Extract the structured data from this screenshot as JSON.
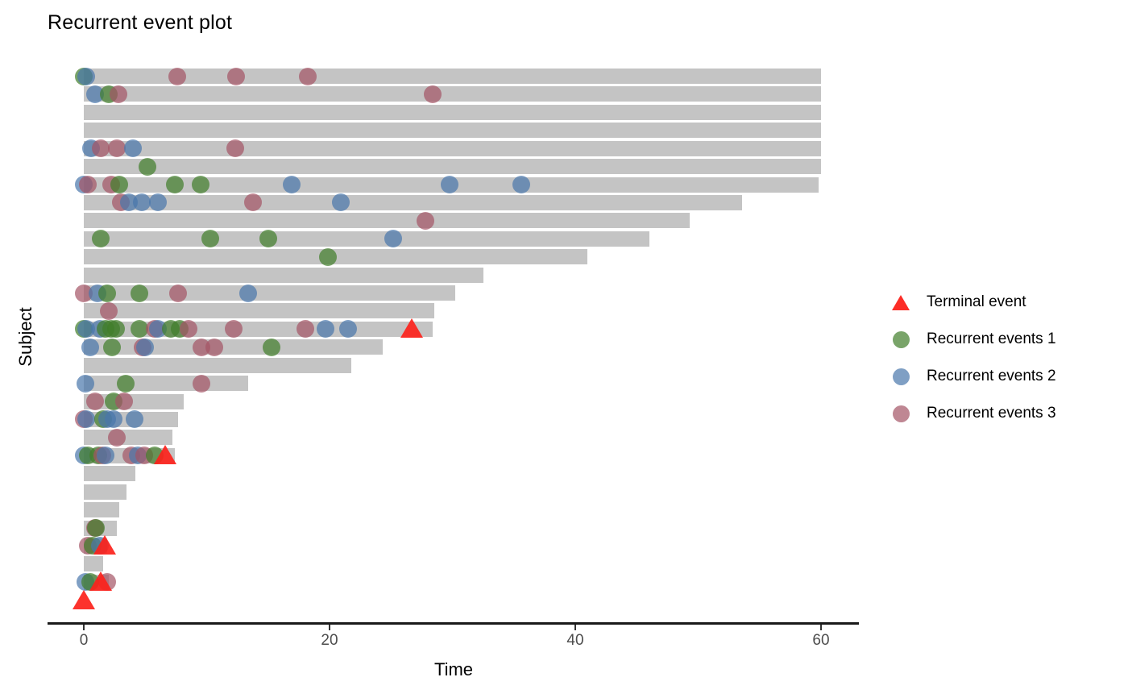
{
  "title": "Recurrent event plot",
  "axes": {
    "x": {
      "label": "Time",
      "ticks": [
        0,
        20,
        40,
        60
      ],
      "range": [
        0,
        63
      ]
    },
    "y": {
      "label": "Subject",
      "tick_labels_shown": false
    }
  },
  "legend": {
    "items": [
      {
        "label": "Terminal event",
        "marker": "triangle",
        "color": "rgba(252,34,27,0.95)"
      },
      {
        "label": "Recurrent events 1",
        "marker": "circle",
        "color": "rgba(64,126,42,0.7)"
      },
      {
        "label": "Recurrent events 2",
        "marker": "circle",
        "color": "rgba(72,118,171,0.7)"
      },
      {
        "label": "Recurrent events 3",
        "marker": "circle",
        "color": "rgba(164,84,101,0.7)"
      }
    ]
  },
  "colors": {
    "bar": "#c4c4c4",
    "terminal": "rgba(252,34,27,0.92)",
    "series": {
      "1": "rgba(64,126,42,0.7)",
      "2": "rgba(72,118,171,0.7)",
      "3": "rgba(164,84,101,0.7)"
    },
    "axis_line": "#1a1a1a",
    "tick_text": "#4d4d4d"
  },
  "chart_data": {
    "type": "bar",
    "orientation": "horizontal",
    "title": "Recurrent event plot",
    "xlabel": "Time",
    "ylabel": "Subject",
    "xlim": [
      0,
      63
    ],
    "grid": false,
    "legend_position": "right",
    "series_names": {
      "1": "Recurrent events 1",
      "2": "Recurrent events 2",
      "3": "Recurrent events 3"
    },
    "note": "Each row = one subject (top to bottom). Gray bar = follow-up time. Circles = recurrent events (series 1 green, 2 blue, 3 pink). Red triangle = terminal event.",
    "subjects": [
      {
        "row": 1,
        "followup": 60.0,
        "terminal": null,
        "events": [
          {
            "t": 0.0,
            "series": 1
          },
          {
            "t": 0.2,
            "series": 2
          },
          {
            "t": 7.6,
            "series": 3
          },
          {
            "t": 12.4,
            "series": 3
          },
          {
            "t": 18.2,
            "series": 3
          }
        ]
      },
      {
        "row": 2,
        "followup": 60.0,
        "terminal": null,
        "events": [
          {
            "t": 0.9,
            "series": 2
          },
          {
            "t": 2.0,
            "series": 1
          },
          {
            "t": 2.8,
            "series": 3
          },
          {
            "t": 28.4,
            "series": 3
          }
        ]
      },
      {
        "row": 3,
        "followup": 60.0,
        "terminal": null,
        "events": []
      },
      {
        "row": 4,
        "followup": 60.0,
        "terminal": null,
        "events": []
      },
      {
        "row": 5,
        "followup": 60.0,
        "terminal": null,
        "events": [
          {
            "t": 0.6,
            "series": 2
          },
          {
            "t": 1.4,
            "series": 3
          },
          {
            "t": 2.7,
            "series": 3
          },
          {
            "t": 4.0,
            "series": 2
          },
          {
            "t": 12.3,
            "series": 3
          }
        ]
      },
      {
        "row": 6,
        "followup": 60.0,
        "terminal": null,
        "events": [
          {
            "t": 5.2,
            "series": 1
          }
        ]
      },
      {
        "row": 7,
        "followup": 59.8,
        "terminal": null,
        "events": [
          {
            "t": 0.0,
            "series": 2
          },
          {
            "t": 0.3,
            "series": 3
          },
          {
            "t": 2.2,
            "series": 3
          },
          {
            "t": 2.9,
            "series": 1
          },
          {
            "t": 7.4,
            "series": 1
          },
          {
            "t": 9.5,
            "series": 1
          },
          {
            "t": 16.9,
            "series": 2
          },
          {
            "t": 29.8,
            "series": 2
          },
          {
            "t": 35.6,
            "series": 2
          }
        ]
      },
      {
        "row": 8,
        "followup": 53.6,
        "terminal": null,
        "events": [
          {
            "t": 3.0,
            "series": 3
          },
          {
            "t": 3.7,
            "series": 2
          },
          {
            "t": 4.7,
            "series": 2
          },
          {
            "t": 6.0,
            "series": 2
          },
          {
            "t": 13.8,
            "series": 3
          },
          {
            "t": 20.9,
            "series": 2
          }
        ]
      },
      {
        "row": 9,
        "followup": 49.3,
        "terminal": null,
        "events": [
          {
            "t": 27.8,
            "series": 3
          }
        ]
      },
      {
        "row": 10,
        "followup": 46.0,
        "terminal": null,
        "events": [
          {
            "t": 1.4,
            "series": 1
          },
          {
            "t": 10.3,
            "series": 1
          },
          {
            "t": 15.0,
            "series": 1
          },
          {
            "t": 25.2,
            "series": 2
          }
        ]
      },
      {
        "row": 11,
        "followup": 41.0,
        "terminal": null,
        "events": [
          {
            "t": 19.9,
            "series": 1
          }
        ]
      },
      {
        "row": 12,
        "followup": 32.5,
        "terminal": null,
        "events": []
      },
      {
        "row": 13,
        "followup": 30.2,
        "terminal": null,
        "events": [
          {
            "t": 0.0,
            "series": 3
          },
          {
            "t": 1.1,
            "series": 2
          },
          {
            "t": 1.9,
            "series": 1
          },
          {
            "t": 4.5,
            "series": 1
          },
          {
            "t": 7.7,
            "series": 3
          },
          {
            "t": 13.4,
            "series": 2
          }
        ]
      },
      {
        "row": 14,
        "followup": 28.5,
        "terminal": null,
        "events": [
          {
            "t": 2.0,
            "series": 3
          }
        ]
      },
      {
        "row": 15,
        "followup": 28.4,
        "terminal": 26.7,
        "events": [
          {
            "t": 0.0,
            "series": 1
          },
          {
            "t": 0.2,
            "series": 2
          },
          {
            "t": 1.3,
            "series": 2
          },
          {
            "t": 1.8,
            "series": 1
          },
          {
            "t": 2.2,
            "series": 1
          },
          {
            "t": 2.6,
            "series": 1
          },
          {
            "t": 4.5,
            "series": 1
          },
          {
            "t": 5.8,
            "series": 3
          },
          {
            "t": 6.0,
            "series": 2
          },
          {
            "t": 7.1,
            "series": 1
          },
          {
            "t": 7.8,
            "series": 1
          },
          {
            "t": 8.5,
            "series": 3
          },
          {
            "t": 12.2,
            "series": 3
          },
          {
            "t": 18.0,
            "series": 3
          },
          {
            "t": 19.7,
            "series": 2
          },
          {
            "t": 21.5,
            "series": 2
          }
        ]
      },
      {
        "row": 16,
        "followup": 24.3,
        "terminal": null,
        "events": [
          {
            "t": 0.5,
            "series": 2
          },
          {
            "t": 2.3,
            "series": 1
          },
          {
            "t": 4.8,
            "series": 3
          },
          {
            "t": 5.0,
            "series": 2
          },
          {
            "t": 9.6,
            "series": 3
          },
          {
            "t": 10.6,
            "series": 3
          },
          {
            "t": 15.3,
            "series": 1
          }
        ]
      },
      {
        "row": 17,
        "followup": 21.8,
        "terminal": null,
        "events": []
      },
      {
        "row": 18,
        "followup": 13.4,
        "terminal": null,
        "events": [
          {
            "t": 0.1,
            "series": 2
          },
          {
            "t": 3.4,
            "series": 1
          },
          {
            "t": 9.6,
            "series": 3
          }
        ]
      },
      {
        "row": 19,
        "followup": 8.1,
        "terminal": null,
        "events": [
          {
            "t": 0.9,
            "series": 3
          },
          {
            "t": 2.4,
            "series": 1
          },
          {
            "t": 3.3,
            "series": 3
          }
        ]
      },
      {
        "row": 20,
        "followup": 7.7,
        "terminal": null,
        "events": [
          {
            "t": 0.0,
            "series": 3
          },
          {
            "t": 0.2,
            "series": 2
          },
          {
            "t": 1.6,
            "series": 1
          },
          {
            "t": 1.9,
            "series": 2
          },
          {
            "t": 2.4,
            "series": 2
          },
          {
            "t": 4.1,
            "series": 2
          }
        ]
      },
      {
        "row": 21,
        "followup": 7.2,
        "terminal": null,
        "events": [
          {
            "t": 2.7,
            "series": 3
          }
        ]
      },
      {
        "row": 22,
        "followup": 7.4,
        "terminal": 6.6,
        "events": [
          {
            "t": 0.0,
            "series": 2
          },
          {
            "t": 0.3,
            "series": 1
          },
          {
            "t": 1.2,
            "series": 1
          },
          {
            "t": 1.5,
            "series": 3
          },
          {
            "t": 1.8,
            "series": 2
          },
          {
            "t": 3.9,
            "series": 3
          },
          {
            "t": 4.4,
            "series": 2
          },
          {
            "t": 4.9,
            "series": 3
          },
          {
            "t": 5.8,
            "series": 1
          }
        ]
      },
      {
        "row": 23,
        "followup": 4.2,
        "terminal": null,
        "events": []
      },
      {
        "row": 24,
        "followup": 3.5,
        "terminal": null,
        "events": []
      },
      {
        "row": 25,
        "followup": 2.9,
        "terminal": null,
        "events": []
      },
      {
        "row": 26,
        "followup": 2.7,
        "terminal": null,
        "events": [
          {
            "t": 0.9,
            "series": 3
          },
          {
            "t": 1.0,
            "series": 1
          }
        ]
      },
      {
        "row": 27,
        "followup": 1.9,
        "terminal": 1.7,
        "events": [
          {
            "t": 0.3,
            "series": 3
          },
          {
            "t": 0.7,
            "series": 1
          },
          {
            "t": 1.3,
            "series": 2
          }
        ]
      },
      {
        "row": 28,
        "followup": 1.6,
        "terminal": null,
        "events": []
      },
      {
        "row": 29,
        "followup": 2.0,
        "terminal": 1.4,
        "events": [
          {
            "t": 0.1,
            "series": 2
          },
          {
            "t": 0.5,
            "series": 1
          },
          {
            "t": 1.9,
            "series": 3
          }
        ]
      },
      {
        "row": 30,
        "followup": 0.0,
        "terminal": 0.0,
        "events": []
      }
    ]
  }
}
